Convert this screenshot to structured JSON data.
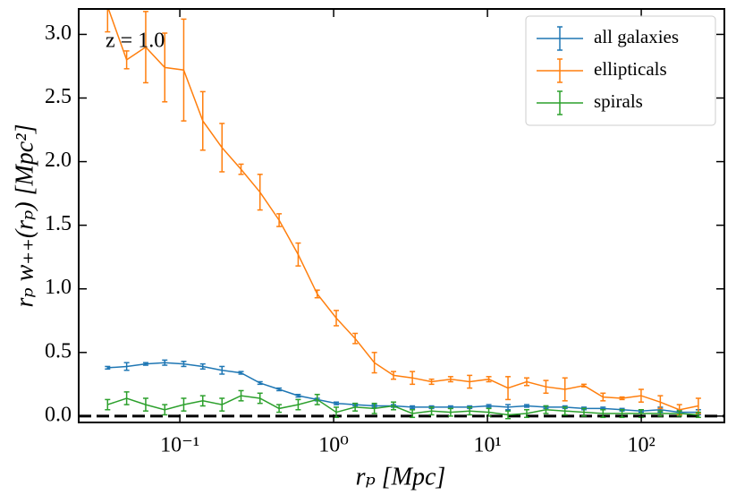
{
  "chart_data": {
    "type": "errorbar-line",
    "xlabel": "rₚ [Mpc]",
    "ylabel": "rₚ w₊₊(rₚ) [Mpc²]",
    "annotation": "z = 1.0",
    "xscale": "log",
    "xlim": [
      0.022,
      347
    ],
    "ylim": [
      -0.05,
      3.2
    ],
    "xticks": [
      {
        "value": 0.1,
        "label": "10⁻¹"
      },
      {
        "value": 1,
        "label": "10⁰"
      },
      {
        "value": 10,
        "label": "10¹"
      },
      {
        "value": 100,
        "label": "10²"
      }
    ],
    "yticks": [
      {
        "value": 0,
        "label": "0.0"
      },
      0.5,
      {
        "value": 1,
        "label": "1.0"
      },
      1.5,
      {
        "value": 2,
        "label": "2.0"
      },
      2.5,
      {
        "value": 3,
        "label": "3.0"
      }
    ],
    "hline": 0,
    "legend": "upper right",
    "x": [
      0.0339,
      0.0451,
      0.06,
      0.0798,
      0.106,
      0.141,
      0.188,
      0.25,
      0.332,
      0.442,
      0.588,
      0.782,
      1.04,
      1.38,
      1.84,
      2.45,
      3.25,
      4.33,
      5.76,
      7.66,
      10.2,
      13.6,
      18.0,
      24.0,
      31.9,
      42.4,
      56.4,
      75.0,
      99.8,
      133,
      177,
      235
    ],
    "series": [
      {
        "name": "all galaxies",
        "color": "#1f77b4",
        "values": [
          0.38,
          0.39,
          0.41,
          0.42,
          0.41,
          0.39,
          0.36,
          0.34,
          0.26,
          0.21,
          0.16,
          0.13,
          0.1,
          0.09,
          0.08,
          0.08,
          0.07,
          0.07,
          0.07,
          0.07,
          0.08,
          0.07,
          0.08,
          0.07,
          0.07,
          0.06,
          0.06,
          0.05,
          0.04,
          0.05,
          0.03,
          0.03
        ],
        "errors": [
          0.01,
          0.03,
          0.01,
          0.02,
          0.02,
          0.02,
          0.03,
          0.01,
          0.01,
          0.01,
          0.01,
          0.01,
          0.01,
          0.01,
          0.01,
          0.01,
          0.01,
          0.01,
          0.01,
          0.01,
          0.01,
          0.02,
          0.01,
          0.01,
          0.01,
          0.01,
          0.01,
          0.01,
          0.01,
          0.02,
          0.02,
          0.02
        ]
      },
      {
        "name": "ellipticals",
        "color": "#ff7f0e",
        "values": [
          3.22,
          2.8,
          2.9,
          2.74,
          2.72,
          2.32,
          2.11,
          1.94,
          1.76,
          1.54,
          1.27,
          0.96,
          0.77,
          0.61,
          0.42,
          0.32,
          0.3,
          0.27,
          0.29,
          0.27,
          0.29,
          0.22,
          0.27,
          0.23,
          0.21,
          0.24,
          0.15,
          0.14,
          0.16,
          0.11,
          0.05,
          0.08
        ],
        "errors": [
          0.2,
          0.07,
          0.28,
          0.27,
          0.4,
          0.23,
          0.19,
          0.04,
          0.14,
          0.05,
          0.09,
          0.03,
          0.06,
          0.04,
          0.08,
          0.03,
          0.05,
          0.02,
          0.02,
          0.05,
          0.02,
          0.09,
          0.03,
          0.05,
          0.09,
          0.01,
          0.03,
          0.01,
          0.05,
          0.05,
          0.04,
          0.06
        ]
      },
      {
        "name": "spirals",
        "color": "#2ca02c",
        "values": [
          0.09,
          0.14,
          0.09,
          0.05,
          0.09,
          0.12,
          0.09,
          0.16,
          0.14,
          0.06,
          0.09,
          0.13,
          0.03,
          0.07,
          0.06,
          0.08,
          0.02,
          0.04,
          0.03,
          0.04,
          0.03,
          0.01,
          0.02,
          0.05,
          0.04,
          0.03,
          0.02,
          0.02,
          0.02,
          0.02,
          0.02,
          0.01
        ],
        "errors": [
          0.04,
          0.05,
          0.05,
          0.04,
          0.05,
          0.04,
          0.05,
          0.04,
          0.04,
          0.03,
          0.04,
          0.04,
          0.04,
          0.03,
          0.04,
          0.03,
          0.03,
          0.03,
          0.03,
          0.03,
          0.03,
          0.03,
          0.03,
          0.03,
          0.03,
          0.03,
          0.03,
          0.03,
          0.03,
          0.02,
          0.02,
          0.02
        ]
      }
    ]
  }
}
